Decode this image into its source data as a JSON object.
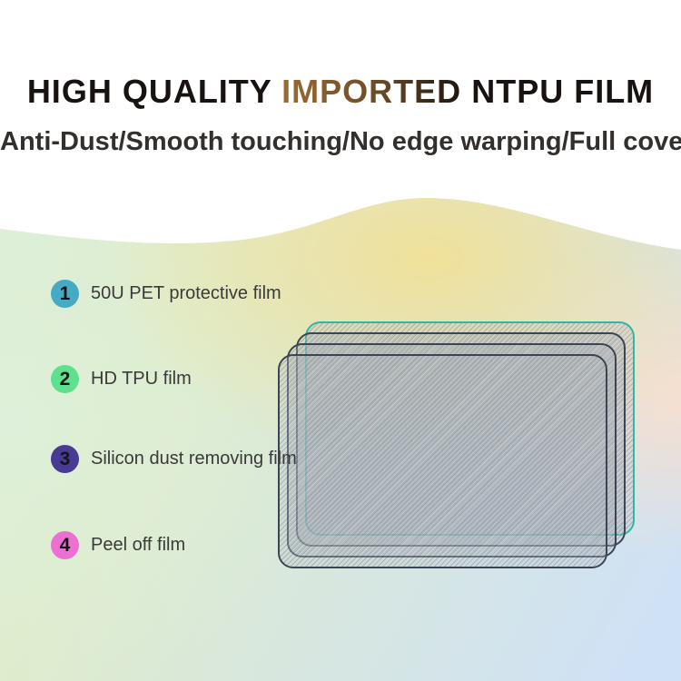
{
  "header": {
    "title_lead": "HIGH QUALITY",
    "title_highlight": "IMPORTED",
    "title_tail": "NTPU FILM",
    "subtitle": "Anti-Dust/Smooth touching/No edge warping/Full cover"
  },
  "film_layers": [
    {
      "number": "1",
      "label": "50U PET protective film",
      "badge_color": "#45aac3"
    },
    {
      "number": "2",
      "label": "HD TPU film",
      "badge_color": "#5fe08c"
    },
    {
      "number": "3",
      "label": "Silicon dust removing film",
      "badge_color": "#483b93"
    },
    {
      "number": "4",
      "label": "Peel off film",
      "badge_color": "#eb70d1"
    }
  ],
  "illustration": {
    "sheet_count": 4,
    "accent_sheet_border": "#2bb8a8",
    "sheet_border": "#3c4553"
  },
  "theme": {
    "title_color": "#181310",
    "imported_gradient_start": "#9d6a31",
    "imported_gradient_end": "#1c150f",
    "background_top": "#ffffff",
    "wave_mint": "#dcefd8",
    "wave_yellow": "#f2e096",
    "wave_peach": "#f8dfce",
    "wave_blue": "#cfe1f6"
  }
}
